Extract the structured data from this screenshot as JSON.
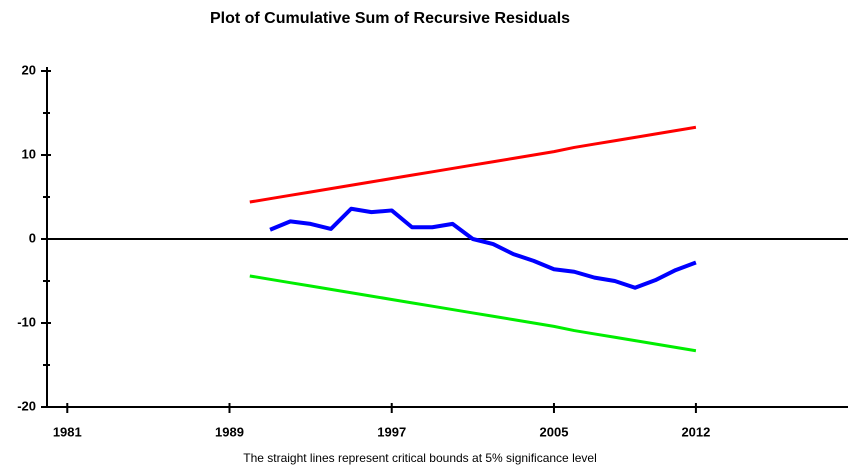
{
  "chart_data": {
    "type": "line",
    "title": "Plot of Cumulative Sum of Recursive Residuals",
    "note": "The straight lines represent critical bounds at 5% significance level",
    "x": [
      1990,
      1991,
      1992,
      1993,
      1994,
      1995,
      1996,
      1997,
      1998,
      1999,
      2000,
      2001,
      2002,
      2003,
      2004,
      2005,
      2006,
      2007,
      2008,
      2009,
      2010,
      2011,
      2012
    ],
    "series": [
      {
        "color": "#ff0000",
        "values": [
          4.4,
          4.8,
          5.2,
          5.6,
          6.0,
          6.4,
          6.8,
          7.2,
          7.6,
          8.0,
          8.4,
          8.8,
          9.2,
          9.6,
          10.0,
          10.4,
          10.9,
          11.3,
          11.7,
          12.1,
          12.5,
          12.9,
          13.3
        ]
      },
      {
        "color": "#00ee00",
        "values": [
          -4.4,
          -4.8,
          -5.2,
          -5.6,
          -6.0,
          -6.4,
          -6.8,
          -7.2,
          -7.6,
          -8.0,
          -8.4,
          -8.8,
          -9.2,
          -9.6,
          -10.0,
          -10.4,
          -10.9,
          -11.3,
          -11.7,
          -12.1,
          -12.5,
          -12.9,
          -13.3
        ]
      },
      {
        "color": "#0000ff",
        "values": [
          null,
          1.1,
          2.1,
          1.8,
          1.2,
          3.6,
          3.2,
          3.4,
          1.4,
          1.4,
          1.8,
          0.0,
          -0.6,
          -1.8,
          -2.6,
          -3.6,
          -3.9,
          -4.6,
          -5.0,
          -5.8,
          -4.9,
          -3.7,
          -2.8
        ]
      }
    ],
    "xlim": [
      1980,
      2019.5
    ],
    "xticks": [
      1981,
      1989,
      1997,
      2005,
      2012
    ],
    "ylim": [
      -20,
      20
    ],
    "yticks": [
      -20,
      -10,
      0,
      10,
      20
    ],
    "yminorticks": [
      -15,
      -5,
      5,
      15
    ]
  }
}
